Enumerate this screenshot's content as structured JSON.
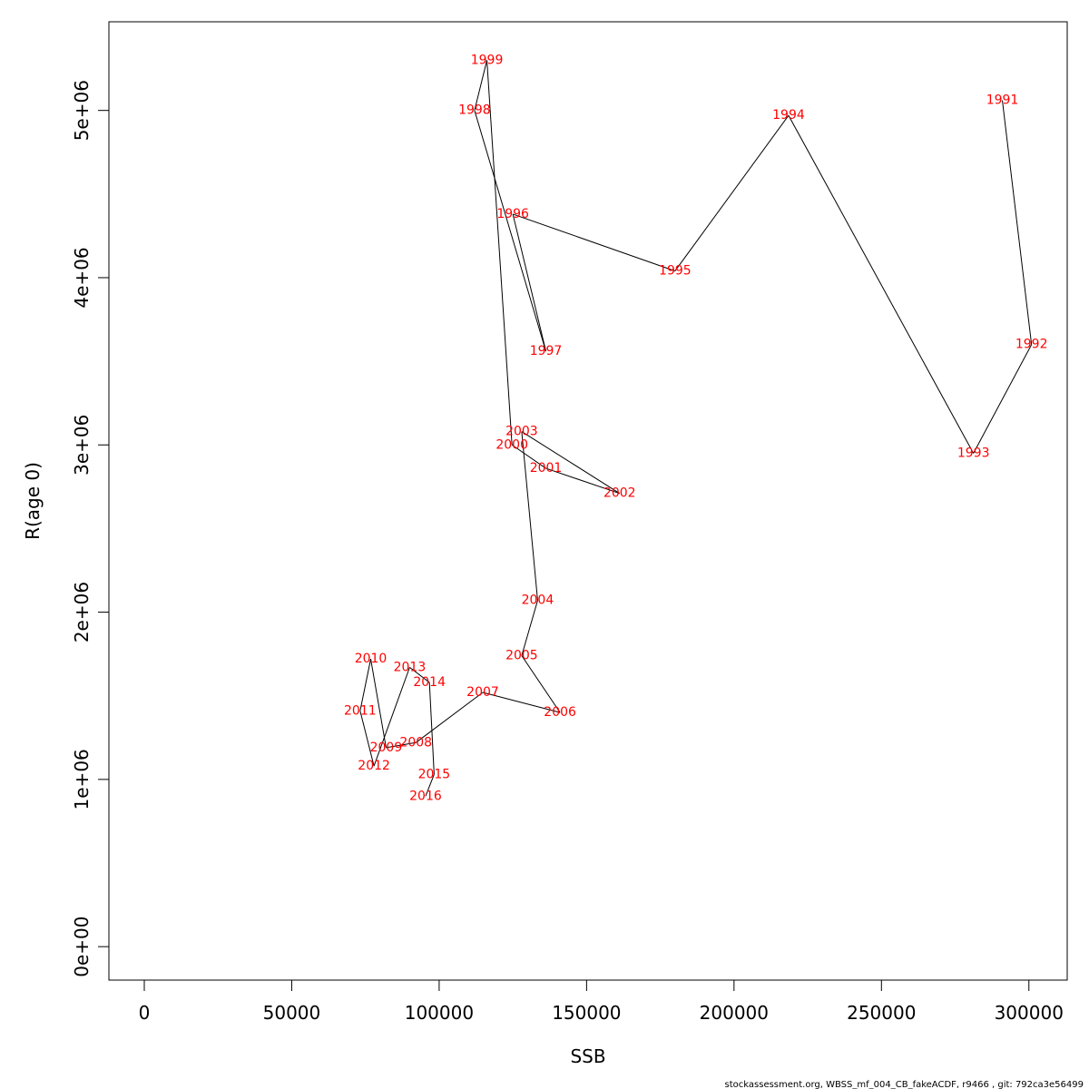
{
  "chart_data": {
    "type": "line",
    "xlabel": "SSB",
    "ylabel": "R(age 0)",
    "xlim": [
      -12000,
      313000
    ],
    "ylim": [
      -200000,
      5530000
    ],
    "x_ticks": [
      {
        "value": 0,
        "label": "0"
      },
      {
        "value": 50000,
        "label": "50000"
      },
      {
        "value": 100000,
        "label": "100000"
      },
      {
        "value": 150000,
        "label": "150000"
      },
      {
        "value": 200000,
        "label": "200000"
      },
      {
        "value": 250000,
        "label": "250000"
      },
      {
        "value": 300000,
        "label": "300000"
      }
    ],
    "y_ticks": [
      {
        "value": 0,
        "label": "0e+00"
      },
      {
        "value": 1000000,
        "label": "1e+06"
      },
      {
        "value": 2000000,
        "label": "2e+06"
      },
      {
        "value": 3000000,
        "label": "3e+06"
      },
      {
        "value": 4000000,
        "label": "4e+06"
      },
      {
        "value": 5000000,
        "label": "5e+06"
      }
    ],
    "grid": false,
    "line_color": "#000000",
    "label_color": "#ff0000",
    "points": [
      {
        "label": "1991",
        "x": 291000,
        "y": 5060000
      },
      {
        "label": "1992",
        "x": 300900,
        "y": 3600000
      },
      {
        "label": "1993",
        "x": 281200,
        "y": 2950000
      },
      {
        "label": "1994",
        "x": 218500,
        "y": 4970000
      },
      {
        "label": "1995",
        "x": 180000,
        "y": 4040000
      },
      {
        "label": "1996",
        "x": 125000,
        "y": 4380000
      },
      {
        "label": "1997",
        "x": 136200,
        "y": 3560000
      },
      {
        "label": "1998",
        "x": 112000,
        "y": 5000000
      },
      {
        "label": "1999",
        "x": 116200,
        "y": 5300000
      },
      {
        "label": "2000",
        "x": 124700,
        "y": 3000000
      },
      {
        "label": "2001",
        "x": 136200,
        "y": 2860000
      },
      {
        "label": "2002",
        "x": 161200,
        "y": 2710000
      },
      {
        "label": "2003",
        "x": 128000,
        "y": 3080000
      },
      {
        "label": "2004",
        "x": 133400,
        "y": 2070000
      },
      {
        "label": "2005",
        "x": 128000,
        "y": 1740000
      },
      {
        "label": "2006",
        "x": 141000,
        "y": 1400000
      },
      {
        "label": "2007",
        "x": 114800,
        "y": 1520000
      },
      {
        "label": "2008",
        "x": 92100,
        "y": 1220000
      },
      {
        "label": "2009",
        "x": 82000,
        "y": 1190000
      },
      {
        "label": "2010",
        "x": 76800,
        "y": 1720000
      },
      {
        "label": "2011",
        "x": 73200,
        "y": 1410000
      },
      {
        "label": "2012",
        "x": 77900,
        "y": 1080000
      },
      {
        "label": "2013",
        "x": 90000,
        "y": 1670000
      },
      {
        "label": "2014",
        "x": 96700,
        "y": 1580000
      },
      {
        "label": "2015",
        "x": 98300,
        "y": 1030000
      },
      {
        "label": "2016",
        "x": 95400,
        "y": 900000
      }
    ]
  },
  "footer": "stockassessment.org, WBSS_mf_004_CB_fakeACDF, r9466 , git: 792ca3e56499"
}
